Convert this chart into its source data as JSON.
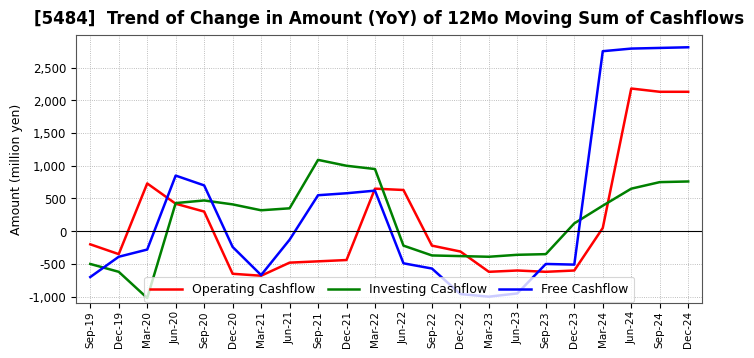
{
  "title": "[5484]  Trend of Change in Amount (YoY) of 12Mo Moving Sum of Cashflows",
  "ylabel": "Amount (million yen)",
  "x_labels": [
    "Sep-19",
    "Dec-19",
    "Mar-20",
    "Jun-20",
    "Sep-20",
    "Dec-20",
    "Mar-21",
    "Jun-21",
    "Sep-21",
    "Dec-21",
    "Mar-22",
    "Jun-22",
    "Sep-22",
    "Dec-22",
    "Mar-23",
    "Jun-23",
    "Sep-23",
    "Dec-23",
    "Mar-24",
    "Jun-24",
    "Sep-24",
    "Dec-24"
  ],
  "operating_cashflow": [
    -200,
    -350,
    730,
    420,
    300,
    -650,
    -680,
    -480,
    -460,
    -440,
    650,
    630,
    -220,
    -310,
    -620,
    -600,
    -620,
    -600,
    50,
    2180,
    2130,
    2130
  ],
  "investing_cashflow": [
    -500,
    -620,
    -1020,
    430,
    470,
    410,
    320,
    350,
    1090,
    1000,
    950,
    -220,
    -370,
    -380,
    -390,
    -360,
    -350,
    120,
    390,
    650,
    750,
    760
  ],
  "free_cashflow": [
    -700,
    -390,
    -280,
    850,
    700,
    -240,
    -670,
    -130,
    550,
    580,
    620,
    -490,
    -570,
    -960,
    -1000,
    -950,
    -500,
    -510,
    2750,
    2790,
    2800,
    2810
  ],
  "operating_color": "#ff0000",
  "investing_color": "#008000",
  "free_color": "#0000ff",
  "ylim": [
    -1100,
    3000
  ],
  "yticks": [
    -1000,
    -500,
    0,
    500,
    1000,
    1500,
    2000,
    2500
  ],
  "background_color": "#ffffff",
  "grid_color": "#aaaaaa",
  "title_fontsize": 12,
  "legend_labels": [
    "Operating Cashflow",
    "Investing Cashflow",
    "Free Cashflow"
  ]
}
